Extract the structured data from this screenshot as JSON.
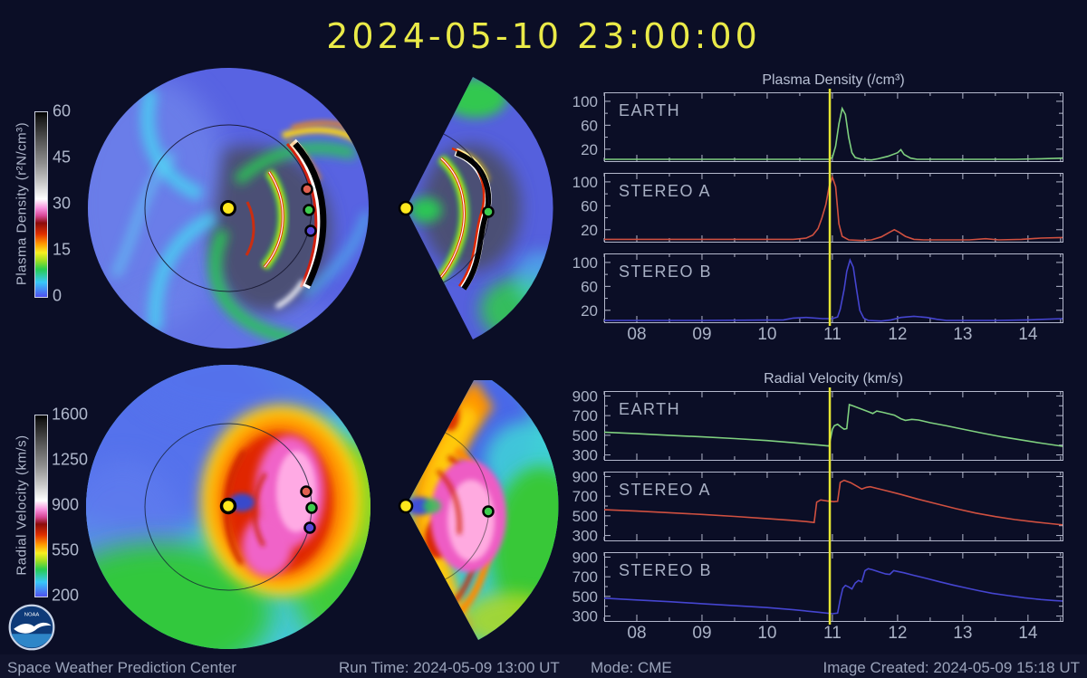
{
  "title": "2024-05-10  23:00:00",
  "logo": {
    "text": "NOAA"
  },
  "statusbar": {
    "org": "Space Weather Prediction Center",
    "run_time": "Run Time: 2024-05-09 13:00 UT",
    "mode": "Mode: CME",
    "created": "Image Created: 2024-05-09 15:18 UT"
  },
  "density_colorbar": {
    "label": "Plasma Density (r²N/cm³)",
    "ticks": [
      "60",
      "45",
      "30",
      "15",
      "0"
    ]
  },
  "velocity_colorbar": {
    "label": "Radial Velocity (km/s)",
    "ticks": [
      "1600",
      "1250",
      "900",
      "550",
      "200"
    ]
  },
  "map_markers": {
    "sun_color": "#ffe81c",
    "earth_color": "#3ecc4e",
    "stereo_a_color": "#e06050",
    "stereo_b_color": "#5848d8"
  },
  "chart_data": [
    {
      "type": "line",
      "title": "Plasma Density (/cm³)",
      "xlim": [
        7.5,
        14.53
      ],
      "ylim": [
        0,
        115
      ],
      "x_tick_values": [
        8,
        9,
        10,
        11,
        12,
        13,
        14
      ],
      "x_tick_labels": [
        "08",
        "09",
        "10",
        "11",
        "12",
        "13",
        "14"
      ],
      "x_minor_step": 0.5,
      "y_ticks": [
        20,
        60,
        100
      ],
      "y_minor": [
        40,
        80
      ],
      "now_x": 10.96,
      "now_color": "#e6e632",
      "panels": [
        {
          "label": "EARTH",
          "color": "#7fd07f",
          "points": [
            [
              7.5,
              3
            ],
            [
              9,
              3
            ],
            [
              10.5,
              3
            ],
            [
              10.95,
              3
            ],
            [
              11.0,
              6
            ],
            [
              11.05,
              25
            ],
            [
              11.1,
              62
            ],
            [
              11.15,
              88
            ],
            [
              11.2,
              78
            ],
            [
              11.25,
              40
            ],
            [
              11.3,
              14
            ],
            [
              11.35,
              6
            ],
            [
              11.45,
              3
            ],
            [
              11.6,
              2
            ],
            [
              11.7,
              4
            ],
            [
              11.85,
              8
            ],
            [
              12.0,
              14
            ],
            [
              12.05,
              19
            ],
            [
              12.1,
              11
            ],
            [
              12.2,
              5
            ],
            [
              12.3,
              3
            ],
            [
              13,
              3
            ],
            [
              13.8,
              3
            ],
            [
              14.2,
              4
            ],
            [
              14.53,
              5
            ]
          ]
        },
        {
          "label": "STEREO A",
          "color": "#d05040",
          "points": [
            [
              7.5,
              4
            ],
            [
              9,
              4
            ],
            [
              10.4,
              4
            ],
            [
              10.6,
              6
            ],
            [
              10.7,
              11
            ],
            [
              10.78,
              22
            ],
            [
              10.84,
              40
            ],
            [
              10.9,
              62
            ],
            [
              10.95,
              92
            ],
            [
              11.0,
              108
            ],
            [
              11.05,
              92
            ],
            [
              11.1,
              30
            ],
            [
              11.15,
              9
            ],
            [
              11.25,
              3
            ],
            [
              11.45,
              2
            ],
            [
              11.6,
              3
            ],
            [
              11.75,
              8
            ],
            [
              11.88,
              16
            ],
            [
              11.95,
              20
            ],
            [
              12.02,
              16
            ],
            [
              12.12,
              9
            ],
            [
              12.25,
              4
            ],
            [
              12.4,
              3
            ],
            [
              13.1,
              3
            ],
            [
              13.35,
              5
            ],
            [
              13.55,
              3
            ],
            [
              13.9,
              4
            ],
            [
              14.2,
              6
            ],
            [
              14.53,
              7
            ]
          ]
        },
        {
          "label": "STEREO B",
          "color": "#4545d0",
          "points": [
            [
              7.5,
              3
            ],
            [
              9,
              3
            ],
            [
              10.25,
              4
            ],
            [
              10.4,
              7
            ],
            [
              10.6,
              8
            ],
            [
              10.85,
              6
            ],
            [
              11.0,
              6
            ],
            [
              11.08,
              9
            ],
            [
              11.12,
              22
            ],
            [
              11.18,
              55
            ],
            [
              11.22,
              85
            ],
            [
              11.27,
              104
            ],
            [
              11.32,
              92
            ],
            [
              11.37,
              55
            ],
            [
              11.42,
              20
            ],
            [
              11.48,
              7
            ],
            [
              11.55,
              3
            ],
            [
              11.75,
              2
            ],
            [
              11.9,
              4
            ],
            [
              12.05,
              8
            ],
            [
              12.25,
              10
            ],
            [
              12.45,
              8
            ],
            [
              12.6,
              5
            ],
            [
              12.75,
              3
            ],
            [
              13.5,
              3
            ],
            [
              14.0,
              4
            ],
            [
              14.53,
              6
            ]
          ]
        }
      ]
    },
    {
      "type": "line",
      "title": "Radial Velocity (km/s)",
      "xlim": [
        7.5,
        14.53
      ],
      "ylim": [
        250,
        950
      ],
      "x_tick_values": [
        8,
        9,
        10,
        11,
        12,
        13,
        14
      ],
      "x_tick_labels": [
        "08",
        "09",
        "10",
        "11",
        "12",
        "13",
        "14"
      ],
      "x_minor_step": 0.5,
      "y_ticks": [
        300,
        500,
        700,
        900
      ],
      "y_minor": [
        400,
        600,
        800
      ],
      "now_x": 10.96,
      "now_color": "#e6e632",
      "panels": [
        {
          "label": "EARTH",
          "color": "#7fd07f",
          "points": [
            [
              7.5,
              532
            ],
            [
              8,
              516
            ],
            [
              8.5,
              500
            ],
            [
              9,
              484
            ],
            [
              9.5,
              466
            ],
            [
              10,
              446
            ],
            [
              10.4,
              424
            ],
            [
              10.8,
              400
            ],
            [
              10.95,
              391
            ],
            [
              11.0,
              560
            ],
            [
              11.03,
              598
            ],
            [
              11.08,
              612
            ],
            [
              11.13,
              585
            ],
            [
              11.18,
              562
            ],
            [
              11.22,
              568
            ],
            [
              11.26,
              812
            ],
            [
              11.32,
              798
            ],
            [
              11.42,
              772
            ],
            [
              11.55,
              740
            ],
            [
              11.62,
              722
            ],
            [
              11.68,
              746
            ],
            [
              11.78,
              733
            ],
            [
              11.95,
              705
            ],
            [
              12.05,
              668
            ],
            [
              12.12,
              652
            ],
            [
              12.22,
              662
            ],
            [
              12.32,
              655
            ],
            [
              12.5,
              628
            ],
            [
              12.75,
              596
            ],
            [
              13.0,
              562
            ],
            [
              13.3,
              522
            ],
            [
              13.6,
              484
            ],
            [
              13.9,
              452
            ],
            [
              14.2,
              420
            ],
            [
              14.53,
              388
            ]
          ]
        },
        {
          "label": "STEREO A",
          "color": "#d05040",
          "points": [
            [
              7.5,
              562
            ],
            [
              8,
              548
            ],
            [
              8.5,
              532
            ],
            [
              9,
              514
            ],
            [
              9.5,
              494
            ],
            [
              10,
              472
            ],
            [
              10.35,
              455
            ],
            [
              10.6,
              442
            ],
            [
              10.72,
              432
            ],
            [
              10.76,
              640
            ],
            [
              10.82,
              662
            ],
            [
              10.92,
              652
            ],
            [
              11.02,
              644
            ],
            [
              11.08,
              648
            ],
            [
              11.12,
              840
            ],
            [
              11.18,
              862
            ],
            [
              11.28,
              838
            ],
            [
              11.38,
              800
            ],
            [
              11.45,
              772
            ],
            [
              11.52,
              790
            ],
            [
              11.58,
              796
            ],
            [
              11.68,
              780
            ],
            [
              11.85,
              752
            ],
            [
              12.05,
              718
            ],
            [
              12.3,
              672
            ],
            [
              12.6,
              622
            ],
            [
              12.9,
              572
            ],
            [
              13.2,
              528
            ],
            [
              13.5,
              492
            ],
            [
              13.8,
              462
            ],
            [
              14.1,
              438
            ],
            [
              14.35,
              420
            ],
            [
              14.53,
              408
            ]
          ]
        },
        {
          "label": "STEREO B",
          "color": "#4545d0",
          "points": [
            [
              7.5,
              482
            ],
            [
              8,
              464
            ],
            [
              8.5,
              446
            ],
            [
              9,
              426
            ],
            [
              9.5,
              406
            ],
            [
              10,
              386
            ],
            [
              10.4,
              364
            ],
            [
              10.8,
              338
            ],
            [
              11.0,
              324
            ],
            [
              11.08,
              330
            ],
            [
              11.12,
              470
            ],
            [
              11.16,
              582
            ],
            [
              11.2,
              612
            ],
            [
              11.25,
              596
            ],
            [
              11.3,
              576
            ],
            [
              11.35,
              636
            ],
            [
              11.4,
              662
            ],
            [
              11.45,
              648
            ],
            [
              11.5,
              762
            ],
            [
              11.55,
              782
            ],
            [
              11.62,
              770
            ],
            [
              11.72,
              748
            ],
            [
              11.82,
              728
            ],
            [
              11.88,
              724
            ],
            [
              11.94,
              762
            ],
            [
              12.0,
              754
            ],
            [
              12.1,
              740
            ],
            [
              12.25,
              714
            ],
            [
              12.45,
              682
            ],
            [
              12.65,
              648
            ],
            [
              12.85,
              616
            ],
            [
              13.05,
              586
            ],
            [
              13.25,
              558
            ],
            [
              13.45,
              532
            ],
            [
              13.7,
              508
            ],
            [
              13.95,
              486
            ],
            [
              14.2,
              468
            ],
            [
              14.4,
              458
            ],
            [
              14.53,
              453
            ]
          ]
        }
      ]
    }
  ]
}
